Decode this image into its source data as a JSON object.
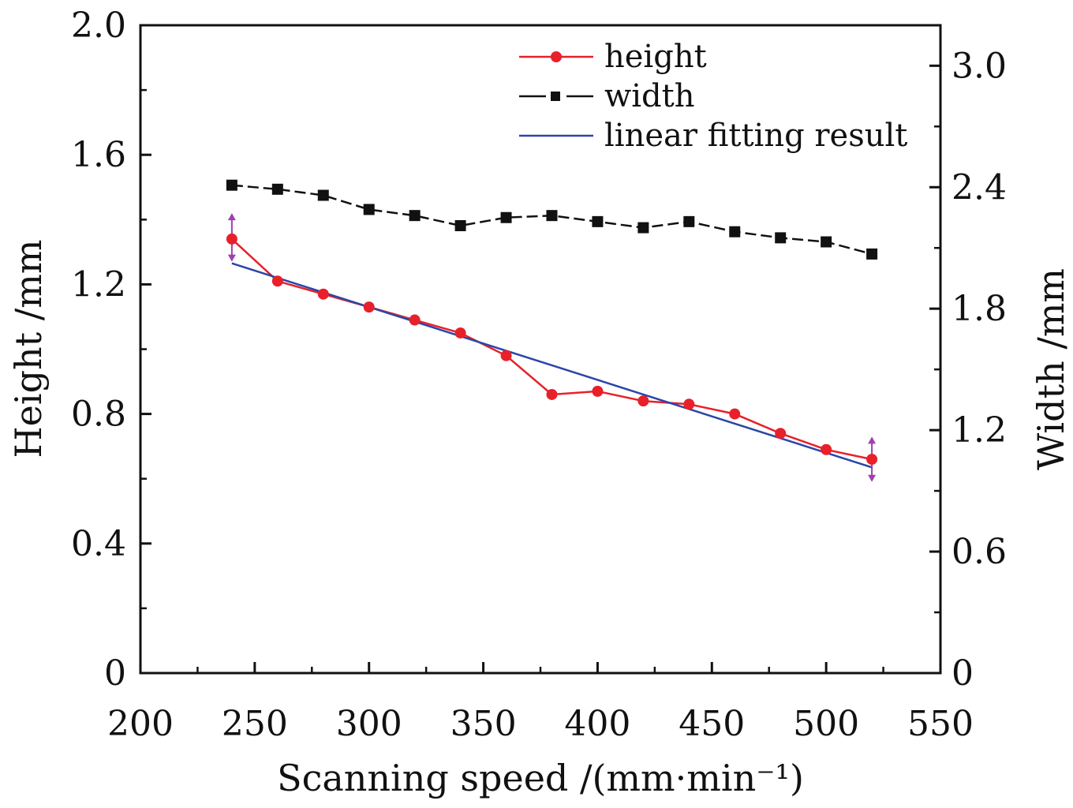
{
  "chart_data": {
    "type": "line",
    "xlabel": "Scanning speed /(mm·min⁻¹)",
    "ylabel": "Height /mm",
    "y2label": "Width /mm",
    "xlim": [
      200,
      550
    ],
    "ylim": [
      0,
      2.0
    ],
    "y2lim": [
      0,
      3.2
    ],
    "xticks": [
      200,
      250,
      300,
      350,
      400,
      450,
      500,
      550
    ],
    "yticks": [
      0,
      0.4,
      0.8,
      1.2,
      1.6,
      2.0
    ],
    "y2ticks": [
      0,
      0.6,
      1.2,
      1.8,
      2.4,
      3.0
    ],
    "xtick_labels": [
      "200",
      "250",
      "300",
      "350",
      "400",
      "450",
      "500",
      "550"
    ],
    "ytick_labels": [
      "0",
      "0.4",
      "0.8",
      "1.2",
      "1.6",
      "2.0"
    ],
    "y2tick_labels": [
      "0",
      "0.6",
      "1.2",
      "1.8",
      "2.4",
      "3.0"
    ],
    "legend_position": "top-right",
    "series": [
      {
        "name": "height",
        "axis": "left",
        "color": "#e8202a",
        "marker": "circle",
        "x": [
          240,
          260,
          280,
          300,
          320,
          340,
          360,
          380,
          400,
          420,
          440,
          460,
          480,
          500,
          520
        ],
        "values": [
          1.34,
          1.21,
          1.17,
          1.13,
          1.09,
          1.05,
          0.98,
          0.86,
          0.87,
          0.84,
          0.83,
          0.8,
          0.74,
          0.69,
          0.66
        ]
      },
      {
        "name": "width",
        "axis": "right",
        "color": "#111111",
        "marker": "square",
        "dash": "dashed",
        "x": [
          240,
          260,
          280,
          300,
          320,
          340,
          360,
          380,
          400,
          420,
          440,
          460,
          480,
          500,
          520
        ],
        "values": [
          2.41,
          2.39,
          2.36,
          2.29,
          2.26,
          2.21,
          2.25,
          2.26,
          2.23,
          2.2,
          2.23,
          2.18,
          2.15,
          2.13,
          2.07
        ]
      },
      {
        "name": "linear fitting result",
        "axis": "left",
        "color": "#2a46a8",
        "marker": "none",
        "x": [
          240,
          520
        ],
        "values": [
          1.265,
          0.635
        ]
      }
    ],
    "error_bars": {
      "color": "#a040b0",
      "points": [
        {
          "x": 240,
          "y": 1.34,
          "low": 1.27,
          "high": 1.42
        },
        {
          "x": 520,
          "y": 0.66,
          "low": 0.59,
          "high": 0.73
        }
      ]
    }
  }
}
